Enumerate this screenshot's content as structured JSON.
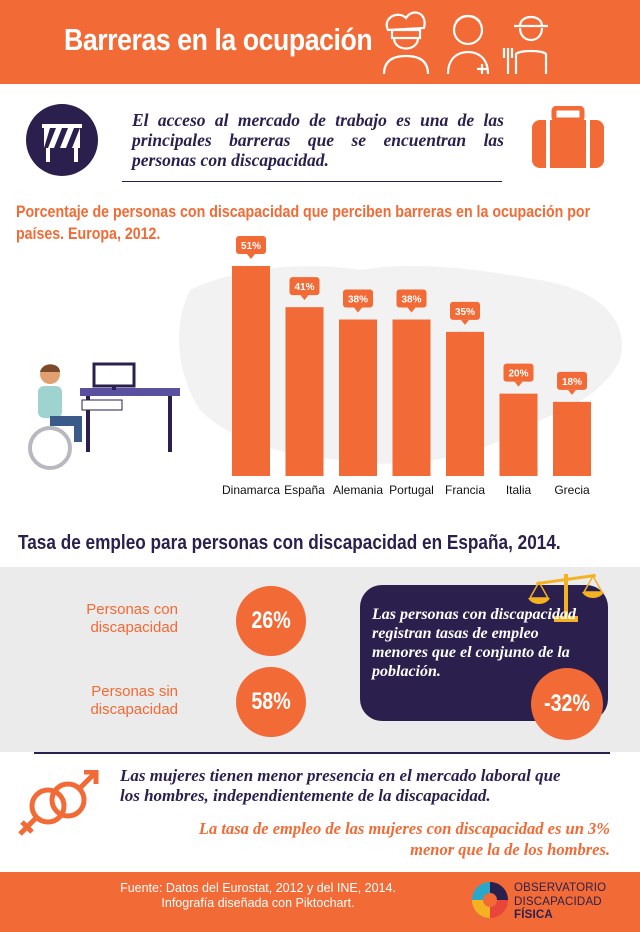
{
  "header": {
    "title": "Barreras en la ocupación",
    "icons": [
      "chef-icon",
      "nurse-icon",
      "farmer-icon"
    ]
  },
  "intro": {
    "text": "El acceso al mercado de trabajo es una de las principales barreras que se encuentran las personas con discapacidad.",
    "icon": "barrier-icon"
  },
  "chart": {
    "title": "Porcentaje de personas con discapacidad que perciben barreras en la ocupación por países. Europa, 2012."
  },
  "chart_data": {
    "type": "bar",
    "title": "Porcentaje de personas con discapacidad que perciben barreras en la ocupación por países. Europa, 2012.",
    "categories": [
      "Dinamarca",
      "España",
      "Alemania",
      "Portugal",
      "Francia",
      "Italia",
      "Grecia"
    ],
    "values": [
      51,
      41,
      38,
      38,
      35,
      20,
      18
    ],
    "value_labels": [
      "51%",
      "41%",
      "38%",
      "38%",
      "35%",
      "20%",
      "18%"
    ],
    "ylim": [
      0,
      60
    ],
    "grid": false,
    "bar_color": "#f26a35"
  },
  "employment": {
    "title": "Tasa de empleo para personas con discapacidad en España, 2014.",
    "stats": [
      {
        "label": "Personas con discapacidad",
        "value": "26%"
      },
      {
        "label": "Personas sin discapacidad",
        "value": "58%"
      }
    ],
    "callout_text": "Las personas con discapacidad registran tasas de empleo menores que el conjunto de la población.",
    "callout_value": "-32%"
  },
  "gender": {
    "text1": "Las mujeres tienen menor presencia en el mercado laboral que los hombres, independientemente de la discapacidad.",
    "text2": "La tasa de empleo de las mujeres con discapacidad es un 3% menor que la de los hombres."
  },
  "footer": {
    "source_line1": "Fuente: Datos del Eurostat, 2012 y del INE, 2014.",
    "source_line2": "Infografía diseñada con Piktochart.",
    "logo_line1": "OBSERVATORIO",
    "logo_line2": "DISCAPACIDAD",
    "logo_line3": "FÍSICA"
  },
  "colors": {
    "accent": "#f26a35",
    "navy": "#2b1f4d",
    "grey": "#ebebec"
  }
}
